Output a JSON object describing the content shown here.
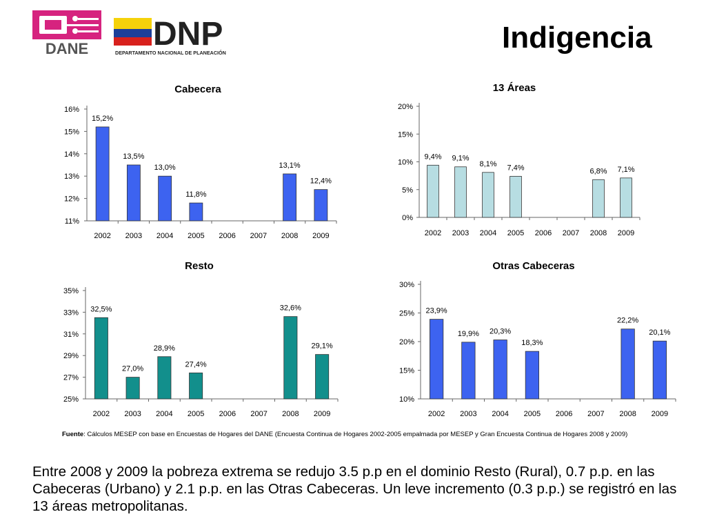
{
  "header": {
    "title": "Indigencia",
    "logo_dane_text": "DANE",
    "logo_dnp_text": "DNP",
    "logo_dnp_subtitle": "DEPARTAMENTO NACIONAL DE PLANEACIÓN"
  },
  "colors": {
    "cabecera_bar": "#3d63f0",
    "areas_bar": "#b7dde2",
    "resto_bar": "#128f8c",
    "otras_bar": "#3d63f0",
    "dane_magenta": "#d6237f",
    "dane_grey": "#555555"
  },
  "chart_data": [
    {
      "id": "cabecera",
      "type": "bar",
      "title": "Cabecera",
      "categories": [
        "2002",
        "2003",
        "2004",
        "2005",
        "2006",
        "2007",
        "2008",
        "2009"
      ],
      "values": [
        15.2,
        13.5,
        13.0,
        11.8,
        null,
        null,
        13.1,
        12.4
      ],
      "labels": [
        "15,2%",
        "13,5%",
        "13,0%",
        "11,8%",
        "",
        "",
        "13,1%",
        "12,4%"
      ],
      "ylim": [
        11,
        16
      ],
      "yticks": [
        11,
        12,
        13,
        14,
        15,
        16
      ],
      "ytick_labels": [
        "11%",
        "12%",
        "13%",
        "14%",
        "15%",
        "16%"
      ],
      "grid": false,
      "legend": "none"
    },
    {
      "id": "areas",
      "type": "bar",
      "title": "13 Áreas",
      "categories": [
        "2002",
        "2003",
        "2004",
        "2005",
        "2006",
        "2007",
        "2008",
        "2009"
      ],
      "values": [
        9.4,
        9.1,
        8.1,
        7.4,
        null,
        null,
        6.8,
        7.1
      ],
      "labels": [
        "9,4%",
        "9,1%",
        "8,1%",
        "7,4%",
        "",
        "",
        "6,8%",
        "7,1%"
      ],
      "ylim": [
        0,
        20
      ],
      "yticks": [
        0,
        5,
        10,
        15,
        20
      ],
      "ytick_labels": [
        "0%",
        "5%",
        "10%",
        "15%",
        "20%"
      ],
      "grid": false,
      "legend": "none"
    },
    {
      "id": "resto",
      "type": "bar",
      "title": "Resto",
      "categories": [
        "2002",
        "2003",
        "2004",
        "2005",
        "2006",
        "2007",
        "2008",
        "2009"
      ],
      "values": [
        32.5,
        27.0,
        28.9,
        27.4,
        null,
        null,
        32.6,
        29.1
      ],
      "labels": [
        "32,5%",
        "27,0%",
        "28,9%",
        "27,4%",
        "",
        "",
        "32,6%",
        "29,1%"
      ],
      "ylim": [
        25,
        35
      ],
      "yticks": [
        25,
        27,
        29,
        31,
        33,
        35
      ],
      "ytick_labels": [
        "25%",
        "27%",
        "29%",
        "31%",
        "33%",
        "35%"
      ],
      "grid": false,
      "legend": "none"
    },
    {
      "id": "otras",
      "type": "bar",
      "title": "Otras Cabeceras",
      "categories": [
        "2002",
        "2003",
        "2004",
        "2005",
        "2006",
        "2007",
        "2008",
        "2009"
      ],
      "values": [
        23.9,
        19.9,
        20.3,
        18.3,
        null,
        null,
        22.2,
        20.1
      ],
      "labels": [
        "23,9%",
        "19,9%",
        "20,3%",
        "18,3%",
        "",
        "",
        "22,2%",
        "20,1%"
      ],
      "ylim": [
        10,
        30
      ],
      "yticks": [
        10,
        15,
        20,
        25,
        30
      ],
      "ytick_labels": [
        "10%",
        "15%",
        "20%",
        "25%",
        "30%"
      ],
      "grid": false,
      "legend": "none"
    }
  ],
  "source": {
    "label": "Fuente",
    "text": ": Cálculos MESEP con base en Encuestas de Hogares del DANE (Encuesta Continua de Hogares 2002-2005 empalmada por MESEP y Gran Encuesta Continua de Hogares 2008 y 2009)"
  },
  "summary": "Entre 2008 y 2009 la pobreza extrema se redujo 3.5 p.p en el dominio Resto (Rural), 0.7 p.p. en las Cabeceras (Urbano) y 2.1 p.p. en las Otras Cabeceras. Un leve incremento (0.3 p.p.) se registró en las 13 áreas metropolitanas."
}
